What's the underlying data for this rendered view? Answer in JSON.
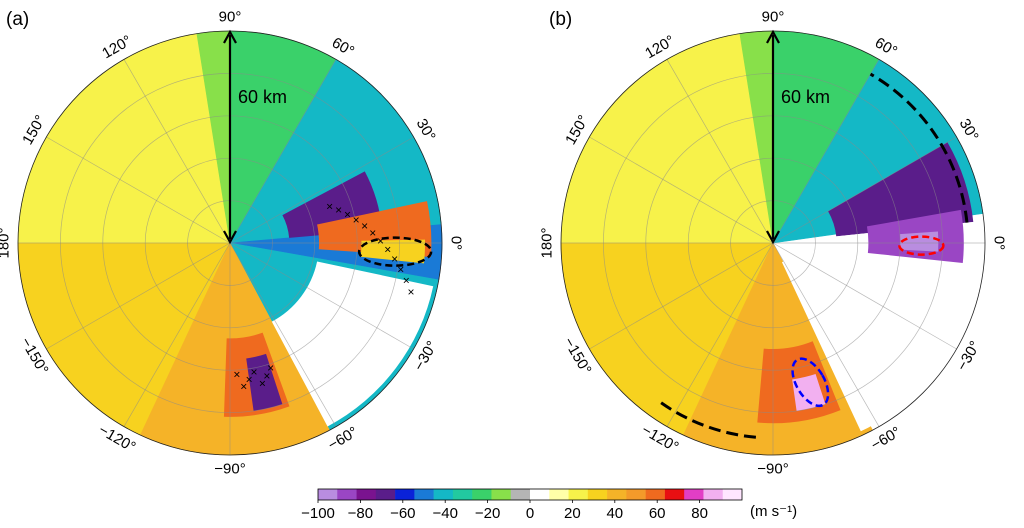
{
  "chart_data": [
    {
      "type": "heatmap",
      "panel_label": "(a)",
      "projection": "polar",
      "radius_km": 60,
      "scale_bar_label": "60 km",
      "angle_ticks_deg": [
        0,
        30,
        60,
        90,
        120,
        150,
        180,
        -150,
        -120,
        -90,
        -60,
        -30
      ],
      "angle_tick_labels": [
        "0°",
        "30°",
        "60°",
        "90°",
        "120°",
        "150°",
        "180°",
        "−150°",
        "−120°",
        "−90°",
        "−60°",
        "−30°"
      ],
      "grid": true,
      "field_sectors": [
        {
          "from_deg": 99,
          "to_deg": 122,
          "value": 20
        },
        {
          "from_deg": 90,
          "to_deg": 99,
          "value": -10
        },
        {
          "from_deg": 60,
          "to_deg": 90,
          "value": -25
        },
        {
          "from_deg": 5,
          "to_deg": 60,
          "value": -45
        },
        {
          "from_deg": -10,
          "to_deg": 5,
          "value": -50
        },
        {
          "from_deg": -62,
          "to_deg": -10,
          "value": -40
        },
        {
          "from_deg": 122,
          "to_deg": 180,
          "value": 22
        },
        {
          "from_deg": -180,
          "to_deg": -115,
          "value": 35
        },
        {
          "from_deg": -115,
          "to_deg": -62,
          "value": 45
        }
      ],
      "features": [
        {
          "kind": "band",
          "value": -65,
          "r": [
            0.28,
            0.72
          ],
          "theta": [
            5,
            28
          ]
        },
        {
          "kind": "core",
          "value": 62,
          "r": [
            0.42,
            0.95
          ],
          "theta": [
            -4,
            12
          ]
        },
        {
          "kind": "core",
          "value": 35,
          "r": [
            0.62,
            0.92
          ],
          "theta": [
            -6,
            1
          ]
        },
        {
          "kind": "no_data",
          "r": [
            0.42,
            0.98
          ],
          "theta": [
            -62,
            -12
          ]
        },
        {
          "kind": "core",
          "value": 62,
          "r": [
            0.45,
            0.82
          ],
          "theta": [
            -92,
            -70
          ]
        },
        {
          "kind": "core",
          "value": -65,
          "r": [
            0.55,
            0.8
          ],
          "theta": [
            -82,
            -72
          ]
        }
      ],
      "annotations": [
        {
          "kind": "ellipse",
          "color": "#000000",
          "r": 0.78,
          "theta_deg": -3
        },
        {
          "kind": "x_markers",
          "count": 19
        }
      ]
    },
    {
      "type": "heatmap",
      "panel_label": "(b)",
      "projection": "polar",
      "radius_km": 60,
      "scale_bar_label": "60 km",
      "angle_ticks_deg": [
        0,
        30,
        60,
        90,
        120,
        150,
        180,
        -150,
        -120,
        -90,
        -60,
        -30
      ],
      "angle_tick_labels": [
        "0°",
        "30°",
        "60°",
        "90°",
        "120°",
        "150°",
        "180°",
        "−150°",
        "−120°",
        "−90°",
        "−60°",
        "−30°"
      ],
      "grid": true,
      "field_sectors": [
        {
          "from_deg": 99,
          "to_deg": 122,
          "value": 20
        },
        {
          "from_deg": 90,
          "to_deg": 99,
          "value": -10
        },
        {
          "from_deg": 60,
          "to_deg": 90,
          "value": -25
        },
        {
          "from_deg": 8,
          "to_deg": 60,
          "value": -45
        },
        {
          "from_deg": 122,
          "to_deg": 180,
          "value": 22
        },
        {
          "from_deg": -180,
          "to_deg": -115,
          "value": 35
        },
        {
          "from_deg": -115,
          "to_deg": -62,
          "value": 45
        }
      ],
      "features": [
        {
          "kind": "band",
          "value": -65,
          "r": [
            0.3,
            0.95
          ],
          "theta": [
            6,
            30
          ]
        },
        {
          "kind": "no_data",
          "r": [
            0.1,
            0.98
          ],
          "theta": [
            -65,
            6
          ]
        },
        {
          "kind": "core",
          "value": -85,
          "r": [
            0.45,
            0.9
          ],
          "theta": [
            -6,
            10
          ]
        },
        {
          "kind": "core",
          "value": -95,
          "r": [
            0.6,
            0.78
          ],
          "theta": [
            -3,
            4
          ]
        },
        {
          "kind": "core",
          "value": 62,
          "r": [
            0.5,
            0.85
          ],
          "theta": [
            -95,
            -68
          ]
        },
        {
          "kind": "core",
          "value": 85,
          "r": [
            0.65,
            0.8
          ],
          "theta": [
            -82,
            -72
          ]
        }
      ],
      "annotations": [
        {
          "kind": "ellipse",
          "color": "#ff0000",
          "r": 0.7,
          "theta_deg": -1
        },
        {
          "kind": "ellipse",
          "color": "#0000ff",
          "r": 0.68,
          "theta_deg": -75
        },
        {
          "kind": "dashed_arc",
          "color": "#000000",
          "r": 0.92,
          "theta": [
            6,
            60
          ]
        },
        {
          "kind": "dashed_arc",
          "color": "#000000",
          "r": 0.92,
          "theta": [
            -125,
            -95
          ]
        }
      ]
    }
  ],
  "colorbar": {
    "tick_values": [
      -100,
      -80,
      -60,
      -40,
      -20,
      0,
      20,
      40,
      60,
      80
    ],
    "tick_labels": [
      "−100",
      "−80",
      "−60",
      "−40",
      "−20",
      "0",
      "20",
      "40",
      "60",
      "80"
    ],
    "range": [
      -100,
      100
    ],
    "unit_label": "(m s⁻¹)",
    "colors": [
      "#b98de0",
      "#9a46c4",
      "#7a138f",
      "#5a1d8a",
      "#0a22d9",
      "#1a7ad6",
      "#14b8c6",
      "#22c9a0",
      "#3ad16a",
      "#88e04a",
      "#b5b5b5",
      "#ffffff",
      "#ffffa8",
      "#f7f24a",
      "#f7d21f",
      "#f5b328",
      "#f39a2a",
      "#ef6a1f",
      "#e80f12",
      "#e23ec5",
      "#f2b0f0",
      "#ffe6ff"
    ]
  }
}
